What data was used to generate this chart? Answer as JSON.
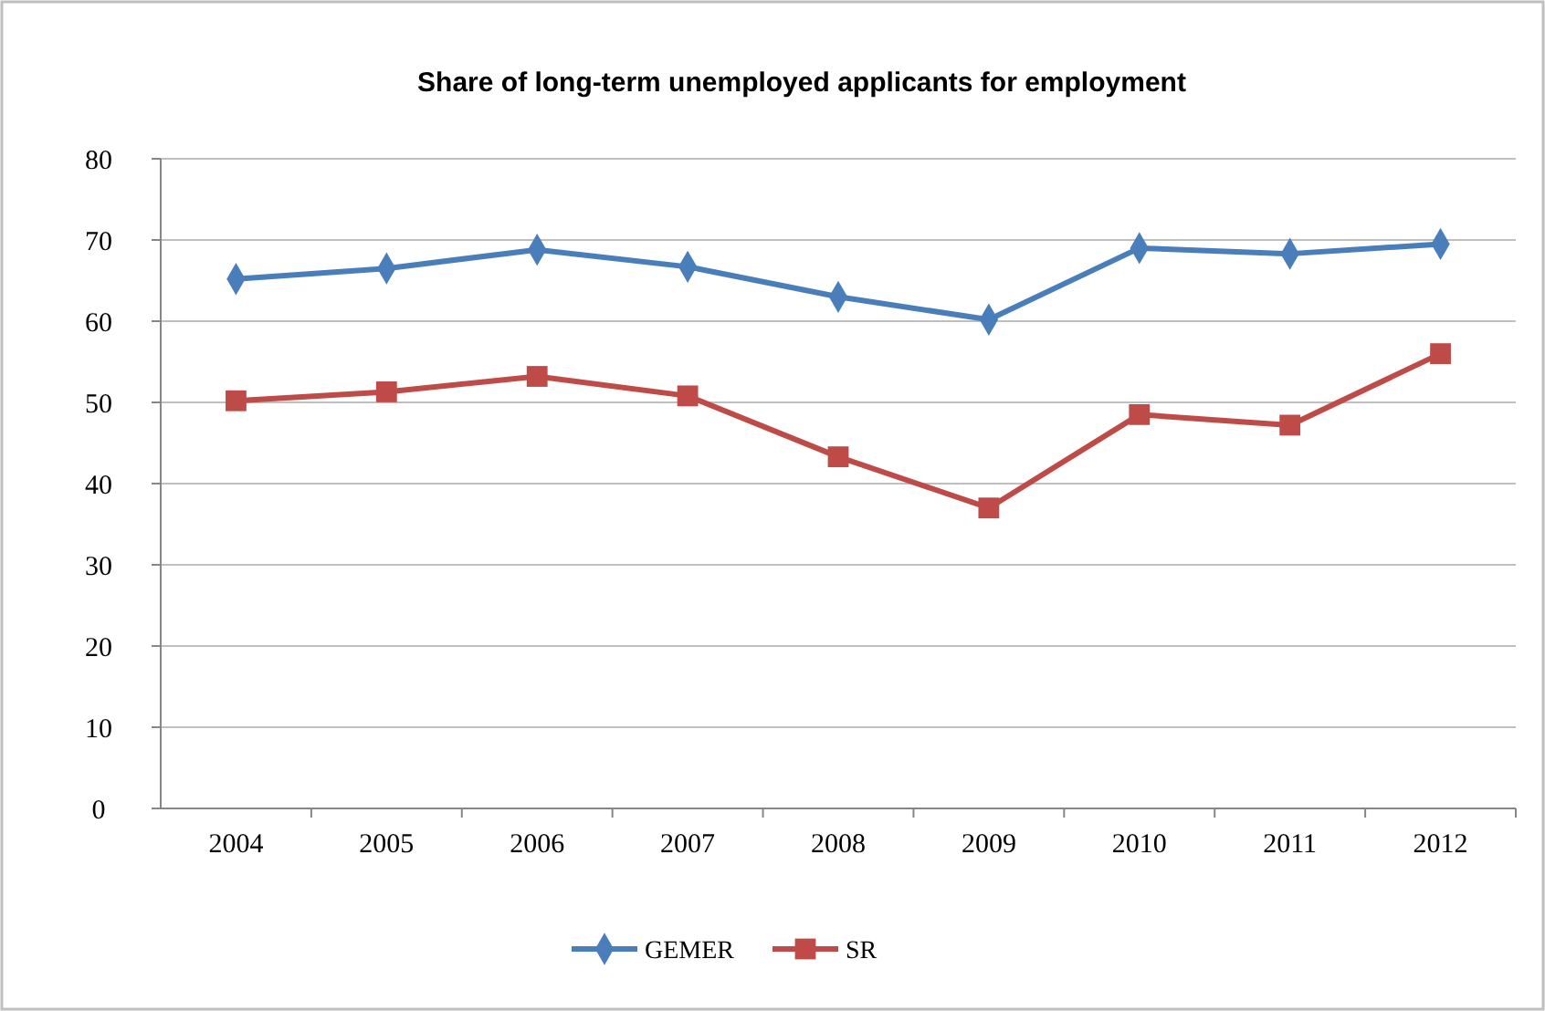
{
  "chart_data": {
    "type": "line",
    "title": "Share of long-term unemployed applicants for employment",
    "categories": [
      "2004",
      "2005",
      "2006",
      "2007",
      "2008",
      "2009",
      "2010",
      "2011",
      "2012"
    ],
    "series": [
      {
        "name": "GEMER",
        "color": "#4a7ebb",
        "marker": "diamond",
        "values": [
          65.2,
          66.5,
          68.8,
          66.7,
          63,
          60.2,
          69,
          68.3,
          69.5
        ]
      },
      {
        "name": "SR",
        "color": "#be4b48",
        "marker": "square",
        "values": [
          50.2,
          51.3,
          53.2,
          50.8,
          43.3,
          37,
          48.5,
          47.2,
          56
        ]
      }
    ],
    "ylim": [
      0,
      80
    ],
    "yticks": [
      0,
      10,
      20,
      30,
      40,
      50,
      60,
      70,
      80
    ],
    "grid": "y",
    "legend": "bottom"
  }
}
